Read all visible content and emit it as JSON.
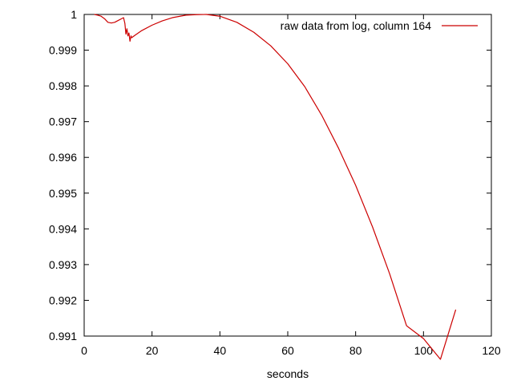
{
  "chart_data": {
    "type": "line",
    "title": "",
    "xlabel": "seconds",
    "ylabel": "",
    "xlim": [
      0,
      120
    ],
    "ylim": [
      0.991,
      1.0
    ],
    "grid": false,
    "legend_position": "top-right",
    "x_ticks": [
      0,
      20,
      40,
      60,
      80,
      100,
      120
    ],
    "x_tick_labels": [
      "0",
      "20",
      "40",
      "60",
      "80",
      "100",
      "120"
    ],
    "y_ticks": [
      0.991,
      0.992,
      0.993,
      0.994,
      0.995,
      0.996,
      0.997,
      0.998,
      0.999,
      1.0
    ],
    "y_tick_labels": [
      "0.991",
      "0.992",
      "0.993",
      "0.994",
      "0.995",
      "0.996",
      "0.997",
      "0.998",
      "0.999",
      "1"
    ],
    "series": [
      {
        "name": "raw data from log, column 164",
        "color": "#cc0000",
        "x": [
          3,
          4,
          5,
          6,
          7,
          8,
          9,
          10,
          11,
          11.6,
          12,
          12.3,
          12.6,
          12.9,
          13.2,
          13.5,
          13.8,
          14,
          15,
          17,
          20,
          23,
          26,
          30,
          33,
          36,
          40,
          45,
          50,
          55,
          60,
          65,
          70,
          75,
          80,
          85,
          90,
          95,
          100,
          105,
          109.5
        ],
        "y": [
          1.0,
          0.99998,
          0.99995,
          0.99988,
          0.99978,
          0.99976,
          0.99978,
          0.99983,
          0.99988,
          0.99991,
          0.99975,
          0.99945,
          0.9996,
          0.9994,
          0.99948,
          0.99925,
          0.9994,
          0.99935,
          0.99942,
          0.99955,
          0.9997,
          0.99982,
          0.99991,
          0.99998,
          0.999995,
          1.0,
          0.99995,
          0.99978,
          0.9995,
          0.99912,
          0.99862,
          0.99798,
          0.99718,
          0.99625,
          0.99522,
          0.99405,
          0.99275,
          0.99129,
          0.99093,
          0.99035,
          0.99174
        ]
      }
    ]
  }
}
